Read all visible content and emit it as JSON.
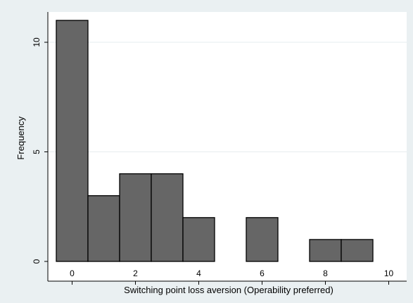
{
  "chart_data": {
    "type": "bar",
    "xlabel": "Switching point loss aversion (Operability preferred)",
    "ylabel": "Frequency",
    "xlim": [
      -0.5,
      10
    ],
    "ylim": [
      0,
      11
    ],
    "x_ticks": [
      0,
      2,
      4,
      6,
      8,
      10
    ],
    "y_ticks": [
      0,
      5,
      10
    ],
    "bin_width": 1,
    "bins": [
      {
        "x": 0,
        "count": 11
      },
      {
        "x": 1,
        "count": 3
      },
      {
        "x": 2,
        "count": 4
      },
      {
        "x": 3,
        "count": 4
      },
      {
        "x": 4,
        "count": 2
      },
      {
        "x": 6,
        "count": 2
      },
      {
        "x": 8,
        "count": 1
      },
      {
        "x": 9,
        "count": 1
      }
    ],
    "grid": true,
    "bar_color": "#666666",
    "bar_edge_color": "#000000",
    "plot_background": "#ffffff",
    "page_background": "#eaf0f2"
  }
}
